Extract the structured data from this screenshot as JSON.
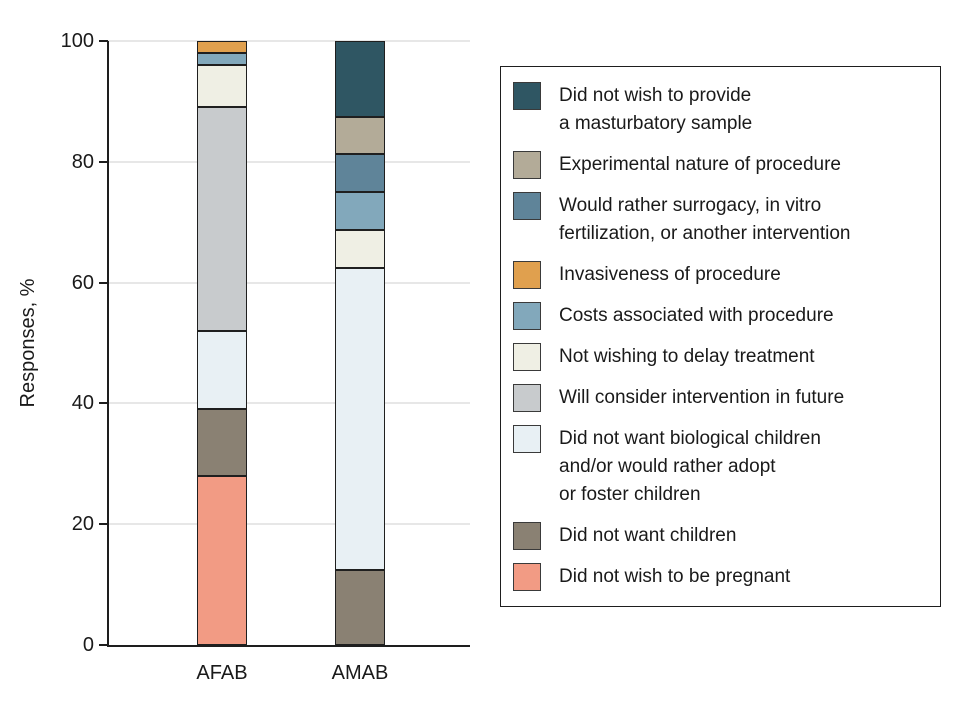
{
  "chart_data": {
    "type": "bar",
    "subtype": "stacked",
    "title": "",
    "xlabel": "",
    "ylabel": "Responses, %",
    "ylim": [
      0,
      100
    ],
    "yticks": [
      0,
      20,
      40,
      60,
      80,
      100
    ],
    "grid": true,
    "legend_position": "right",
    "axis_color": "#1e1e1e",
    "grid_color": "#e7e7e7",
    "categories": [
      "AFAB",
      "AMAB"
    ],
    "series": [
      {
        "name": "Did not wish to provide a masturbatory sample",
        "label": "Did not wish to provide\na masturbatory sample",
        "color": "#2F5663",
        "values": [
          0,
          12.5
        ]
      },
      {
        "name": "Experimental nature of procedure",
        "label": "Experimental nature of procedure",
        "color": "#B3AB98",
        "values": [
          0,
          6.25
        ]
      },
      {
        "name": "Would rather surrogacy, in vitro fertilization, or another intervention",
        "label": "Would rather surrogacy, in vitro\nfertilization, or another intervention",
        "color": "#5F8499",
        "values": [
          0,
          6.25
        ]
      },
      {
        "name": "Invasiveness of procedure",
        "label": "Invasiveness of procedure",
        "color": "#E0A04E",
        "values": [
          2,
          0
        ]
      },
      {
        "name": "Costs associated with procedure",
        "label": "Costs associated with procedure",
        "color": "#82A8BB",
        "values": [
          2,
          6.25
        ]
      },
      {
        "name": "Not wishing to delay treatment",
        "label": "Not wishing to delay treatment",
        "color": "#EFEFE4",
        "values": [
          7,
          6.25
        ]
      },
      {
        "name": "Will consider intervention in future",
        "label": "Will consider intervention in future",
        "color": "#C8CBCD",
        "values": [
          37,
          0
        ]
      },
      {
        "name": "Did not want biological children and/or would rather adopt or foster children",
        "label": "Did not want biological children\nand/or would rather adopt\nor foster children",
        "color": "#E8F0F4",
        "values": [
          13,
          50
        ]
      },
      {
        "name": "Did not want children",
        "label": "Did not want children",
        "color": "#8A8173",
        "values": [
          11,
          12.5
        ]
      },
      {
        "name": "Did not wish to be pregnant",
        "label": "Did not wish to be pregnant",
        "color": "#F29B84",
        "values": [
          28,
          0
        ]
      }
    ]
  }
}
